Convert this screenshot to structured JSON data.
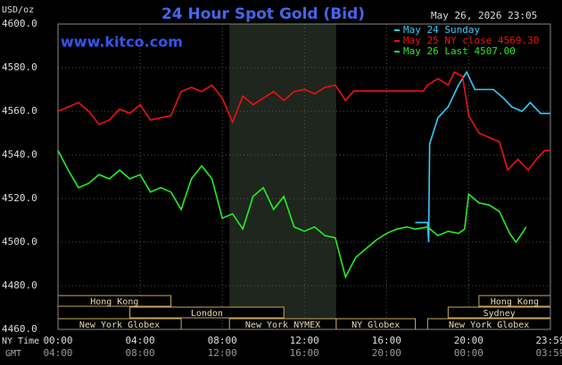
{
  "chart_data": {
    "type": "line",
    "title": "24 Hour Spot Gold (Bid)",
    "timestamp": "May 26, 2026 23:05",
    "y_label": "USD/oz",
    "watermark": "www.kitco.com",
    "x_label": "NY Time",
    "x2_label": "GMT",
    "xlim": [
      0,
      23.98
    ],
    "ylim": [
      4460,
      4600
    ],
    "xticks": [
      {
        "value": 0,
        "label": "00:00"
      },
      {
        "value": 4,
        "label": "04:00"
      },
      {
        "value": 8,
        "label": "08:00"
      },
      {
        "value": 12,
        "label": "12:00"
      },
      {
        "value": 16,
        "label": "16:00"
      },
      {
        "value": 20,
        "label": "20:00"
      },
      {
        "value": 23.98,
        "label": "23:59"
      }
    ],
    "gmt_ticks": [
      "04:00",
      "08:00",
      "12:00",
      "16:00",
      "20:00",
      "00:00",
      "03:59"
    ],
    "yticks": [
      {
        "value": 4460,
        "label": "4460.0"
      },
      {
        "value": 4480,
        "label": "4480.0"
      },
      {
        "value": 4500,
        "label": "4500.0"
      },
      {
        "value": 4520,
        "label": "4520.0"
      },
      {
        "value": 4540,
        "label": "4540.0"
      },
      {
        "value": 4560,
        "label": "4560.0"
      },
      {
        "value": 4580,
        "label": "4580.0"
      },
      {
        "value": 4600,
        "label": "4600.0"
      }
    ],
    "grid": true,
    "legend": "top-right",
    "shaded_hours": [
      8.35,
      13.55
    ],
    "series": [
      {
        "name": "May 24 Sunday",
        "color": "#33ccff",
        "x": [
          17.4,
          18,
          18.05,
          18.1,
          18.5,
          19,
          19.5,
          19.9,
          20.3,
          20.7,
          21.2,
          21.7,
          22.1,
          22.6,
          23,
          23.5,
          23.98
        ],
        "values": [
          4509,
          4509,
          4500,
          4545,
          4557,
          4562,
          4572,
          4578,
          4570,
          4570,
          4570,
          4566,
          4562,
          4560,
          4564,
          4559,
          4559
        ]
      },
      {
        "name": "May 25 NY close 4569.30",
        "color": "#ee1111",
        "x": [
          0,
          0.5,
          1,
          1.5,
          2,
          2.5,
          3,
          3.5,
          4,
          4.5,
          5,
          5.5,
          6,
          6.5,
          7,
          7.5,
          8,
          8.5,
          9,
          9.5,
          10,
          10.5,
          11,
          11.5,
          12,
          12.5,
          13,
          13.5,
          14,
          14.4,
          17.8,
          18,
          18.5,
          19,
          19.3,
          19.7,
          20,
          20.5,
          21,
          21.5,
          21.9,
          22.4,
          22.9,
          23.3,
          23.7,
          23.98
        ],
        "values": [
          4560,
          4562,
          4564,
          4560,
          4554,
          4556,
          4561,
          4559,
          4563,
          4556,
          4557,
          4558,
          4569,
          4571,
          4569,
          4572,
          4566,
          4555,
          4567,
          4563,
          4566,
          4569,
          4565,
          4569,
          4570,
          4568,
          4571,
          4572,
          4565,
          4569.3,
          4569.3,
          4572,
          4575,
          4572,
          4578,
          4576,
          4558,
          4550,
          4548,
          4546,
          4533,
          4538,
          4533,
          4538,
          4542,
          4542
        ]
      },
      {
        "name": "May 26 Last 4507.00",
        "color": "#22ee22",
        "x": [
          0,
          0.5,
          1,
          1.5,
          2,
          2.5,
          3,
          3.5,
          4,
          4.5,
          5,
          5.5,
          6,
          6.5,
          7,
          7.5,
          8,
          8.5,
          9,
          9.5,
          10,
          10.5,
          11,
          11.5,
          12,
          12.5,
          13,
          13.5,
          14,
          14.5,
          15,
          15.5,
          16,
          16.5,
          17,
          17.4,
          18,
          18.5,
          19,
          19.5,
          19.8,
          20,
          20.5,
          21,
          21.5,
          22,
          22.3,
          22.6,
          22.8
        ],
        "values": [
          4542,
          4533,
          4525,
          4527,
          4531,
          4529,
          4533,
          4529,
          4531,
          4523,
          4525,
          4523,
          4515,
          4529,
          4535,
          4529,
          4511,
          4513,
          4506,
          4521,
          4525,
          4515,
          4521,
          4507,
          4505,
          4507,
          4503,
          4502,
          4484,
          4493,
          4497,
          4501,
          4504,
          4506,
          4507,
          4506,
          4507,
          4503,
          4505,
          4504,
          4506,
          4522,
          4518,
          4517,
          4514,
          4504,
          4500,
          4504,
          4507
        ]
      }
    ],
    "session_rows": [
      [
        {
          "label": "Hong Kong",
          "start": 0,
          "end": 5.5
        },
        {
          "label": "Hong Kong",
          "start": 20.5,
          "end": 23.98
        }
      ],
      [
        {
          "label": "London",
          "start": 3.5,
          "end": 11
        },
        {
          "label": "Sydney",
          "start": 19,
          "end": 23.98
        }
      ],
      [
        {
          "label": "New York Globex",
          "start": 0,
          "end": 6
        },
        {
          "label": "New York NYMEX",
          "start": 8.35,
          "end": 13.55
        },
        {
          "label": "NY Globex",
          "start": 13.55,
          "end": 17.4
        },
        {
          "label": "New York Globex",
          "start": 18,
          "end": 23.98
        }
      ]
    ]
  }
}
